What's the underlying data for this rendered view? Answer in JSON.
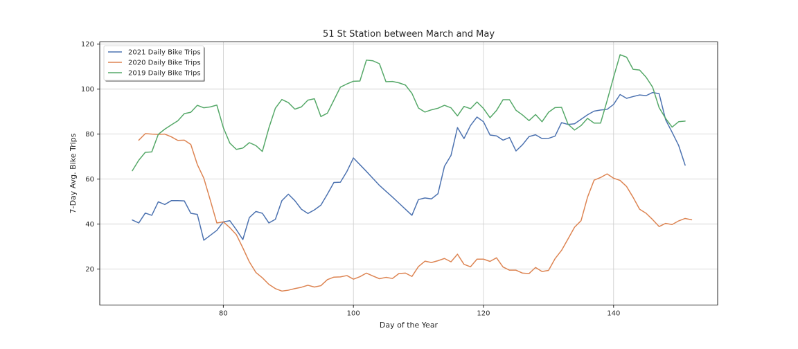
{
  "chart_data": {
    "type": "line",
    "title": "51 St Station between March and May",
    "xlabel": "Day of the Year",
    "ylabel": "7-Day Avg. Bike Trips",
    "xlim": [
      61,
      156
    ],
    "ylim": [
      4,
      121
    ],
    "xticks": [
      80,
      100,
      120,
      140
    ],
    "yticks": [
      20,
      40,
      60,
      80,
      100,
      120
    ],
    "grid": true,
    "legend_position": "top-left",
    "series": [
      {
        "name": "2021 Daily Bike Trips",
        "color": "#4c72b0",
        "x": [
          66,
          67,
          68,
          69,
          70,
          71,
          72,
          73,
          74,
          75,
          76,
          77,
          78,
          79,
          80,
          81,
          82,
          83,
          84,
          85,
          86,
          87,
          88,
          89,
          90,
          91,
          92,
          93,
          94,
          95,
          96,
          97,
          98,
          99,
          100,
          101,
          102,
          103,
          104,
          105,
          106,
          107,
          108,
          109,
          110,
          111,
          112,
          113,
          114,
          115,
          116,
          117,
          118,
          119,
          120,
          121,
          122,
          123,
          124,
          125,
          126,
          127,
          128,
          129,
          130,
          131,
          132,
          133,
          134,
          135,
          136,
          137,
          138,
          139,
          140,
          141,
          142,
          143,
          144,
          145,
          146,
          147,
          148,
          149,
          150,
          151
        ],
        "y": [
          41.8,
          40.5,
          44.9,
          43.9,
          49.9,
          48.7,
          50.4,
          50.4,
          50.3,
          44.8,
          44.3,
          32.8,
          35.0,
          37.2,
          41.0,
          41.5,
          37.5,
          33.1,
          42.9,
          45.6,
          44.8,
          40.5,
          42.1,
          50.4,
          53.3,
          50.4,
          46.6,
          44.7,
          46.3,
          48.4,
          53.3,
          58.5,
          58.6,
          63.4,
          69.4,
          66.4,
          63.4,
          60.3,
          57.2,
          54.6,
          52.0,
          49.3,
          46.6,
          43.9,
          50.9,
          51.6,
          51.2,
          53.5,
          65.7,
          70.5,
          82.9,
          78.0,
          83.8,
          87.6,
          85.5,
          79.6,
          79.2,
          77.3,
          78.5,
          72.5,
          75.3,
          78.9,
          79.7,
          78.0,
          78.1,
          79.1,
          85.1,
          84.3,
          84.6,
          86.6,
          88.6,
          90.2,
          90.7,
          91.0,
          93.2,
          97.6,
          95.9,
          96.7,
          97.4,
          97.1,
          98.5,
          98.0,
          86.4,
          80.8,
          75.0,
          66.2
        ]
      },
      {
        "name": "2020 Daily Bike Trips",
        "color": "#dd8452",
        "x": [
          67,
          68,
          69,
          70,
          71,
          72,
          73,
          74,
          75,
          76,
          77,
          78,
          79,
          80,
          81,
          82,
          83,
          84,
          85,
          86,
          87,
          88,
          89,
          90,
          91,
          92,
          93,
          94,
          95,
          96,
          97,
          98,
          99,
          100,
          101,
          102,
          103,
          104,
          105,
          106,
          107,
          108,
          109,
          110,
          111,
          112,
          113,
          114,
          115,
          116,
          117,
          118,
          119,
          120,
          121,
          122,
          123,
          124,
          125,
          126,
          127,
          128,
          129,
          130,
          131,
          132,
          133,
          134,
          135,
          136,
          137,
          138,
          139,
          140,
          141,
          142,
          143,
          144,
          145,
          146,
          147,
          148,
          149,
          150,
          151,
          152
        ],
        "y": [
          77.3,
          80.2,
          80.0,
          79.9,
          80.0,
          78.8,
          77.2,
          77.3,
          75.4,
          66.5,
          60.4,
          50.6,
          40.5,
          41.0,
          38.4,
          35.3,
          29.4,
          23.2,
          18.5,
          16.1,
          13.2,
          11.3,
          10.2,
          10.6,
          11.3,
          11.9,
          12.8,
          12.0,
          12.6,
          15.3,
          16.4,
          16.5,
          17.1,
          15.5,
          16.6,
          18.2,
          16.9,
          15.7,
          16.3,
          15.8,
          18.0,
          18.2,
          16.7,
          21.1,
          23.5,
          22.9,
          23.7,
          24.7,
          23.2,
          26.6,
          22.1,
          21.0,
          24.4,
          24.4,
          23.4,
          25.0,
          20.9,
          19.5,
          19.5,
          18.2,
          18.0,
          20.7,
          18.9,
          19.4,
          24.6,
          28.3,
          33.4,
          38.6,
          41.5,
          52.0,
          59.5,
          60.7,
          62.3,
          60.4,
          59.4,
          56.7,
          51.9,
          46.6,
          44.8,
          42.0,
          38.9,
          40.3,
          39.8,
          41.4,
          42.5,
          41.9
        ]
      },
      {
        "name": "2019 Daily Bike Trips",
        "color": "#55a868",
        "x": [
          66,
          67,
          68,
          69,
          70,
          71,
          72,
          73,
          74,
          75,
          76,
          77,
          78,
          79,
          80,
          81,
          82,
          83,
          84,
          85,
          86,
          87,
          88,
          89,
          90,
          91,
          92,
          93,
          94,
          95,
          96,
          97,
          98,
          99,
          100,
          101,
          102,
          103,
          104,
          105,
          106,
          107,
          108,
          109,
          110,
          111,
          112,
          113,
          114,
          115,
          116,
          117,
          118,
          119,
          120,
          121,
          122,
          123,
          124,
          125,
          126,
          127,
          128,
          129,
          130,
          131,
          132,
          133,
          134,
          135,
          136,
          137,
          138,
          139,
          140,
          141,
          142,
          143,
          144,
          145,
          146,
          147,
          148,
          149,
          150,
          151
        ],
        "y": [
          63.7,
          68.4,
          71.9,
          72.1,
          79.9,
          82.2,
          84.1,
          85.9,
          89.1,
          89.7,
          92.8,
          91.7,
          92.1,
          92.9,
          82.9,
          76.0,
          73.2,
          73.8,
          76.2,
          74.9,
          72.3,
          82.7,
          91.5,
          95.4,
          94.0,
          91.1,
          92.1,
          95.1,
          95.7,
          87.8,
          89.3,
          95.1,
          100.9,
          102.3,
          103.5,
          103.6,
          112.9,
          112.6,
          111.3,
          103.3,
          103.4,
          102.8,
          101.8,
          98.1,
          91.6,
          89.8,
          90.8,
          91.5,
          92.8,
          91.7,
          88.1,
          92.3,
          91.3,
          94.3,
          91.4,
          87.3,
          90.5,
          95.3,
          95.3,
          90.6,
          88.5,
          86.0,
          88.7,
          85.5,
          89.7,
          91.8,
          91.9,
          84.4,
          81.8,
          83.8,
          87.0,
          84.9,
          84.9,
          94.8,
          105.3,
          115.3,
          114.2,
          108.8,
          108.5,
          105.3,
          100.9,
          91.8,
          87.0,
          83.1,
          85.5,
          85.8
        ]
      }
    ]
  }
}
